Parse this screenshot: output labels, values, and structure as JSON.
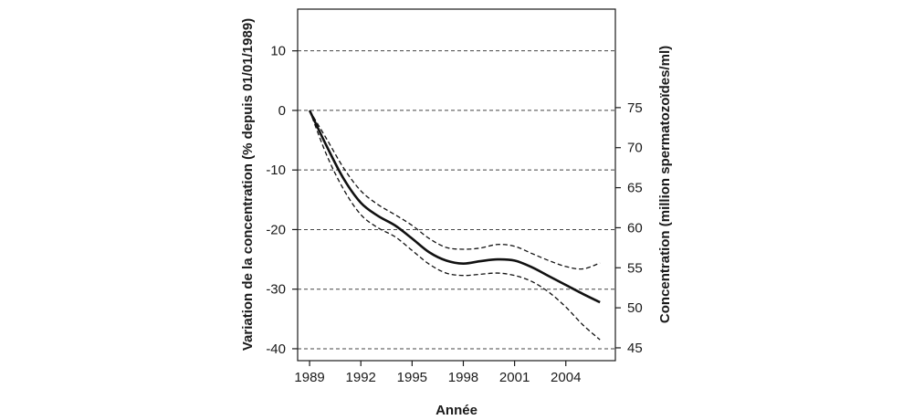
{
  "chart_data": {
    "type": "line",
    "title": "",
    "xlabel": "Année",
    "ylabel_left": "Variation de la concentration (% depuis 01/01/1989)",
    "ylabel_right": "Concentration (million spermatozoïdes/ml)",
    "xlim": [
      1988.3,
      2006.9
    ],
    "ylim_left": [
      -42,
      17
    ],
    "ylim_right": [
      43.4,
      87.3
    ],
    "x_ticks": [
      1989,
      1992,
      1995,
      1998,
      2001,
      2004
    ],
    "y_ticks_left": [
      10,
      0,
      -10,
      -20,
      -30,
      -40
    ],
    "y_ticks_right": [
      75,
      70,
      65,
      60,
      55,
      50,
      45
    ],
    "grid": "horizontal-dashed",
    "series": [
      {
        "role": "estimate",
        "style": "solid",
        "x": [
          1989,
          1990,
          1991,
          1992,
          1993,
          1994,
          1995,
          1996,
          1997,
          1998,
          1999,
          2000,
          2001,
          2002,
          2003,
          2004,
          2005,
          2006
        ],
        "y": [
          0,
          -6,
          -11.5,
          -15.5,
          -17.7,
          -19.3,
          -21.5,
          -23.8,
          -25.2,
          -25.7,
          -25.3,
          -25,
          -25.2,
          -26.3,
          -27.8,
          -29.3,
          -30.8,
          -32.2
        ]
      },
      {
        "role": "upper-ci",
        "style": "dashed",
        "x": [
          1989,
          1990,
          1991,
          1992,
          1993,
          1994,
          1995,
          1996,
          1997,
          1998,
          1999,
          2000,
          2001,
          2002,
          2003,
          2004,
          2005,
          2006
        ],
        "y": [
          0,
          -4.8,
          -9.7,
          -13.5,
          -15.8,
          -17.5,
          -19.3,
          -21.5,
          -23,
          -23.3,
          -23.1,
          -22.5,
          -22.8,
          -24,
          -25.2,
          -26.2,
          -26.6,
          -25.6
        ]
      },
      {
        "role": "lower-ci",
        "style": "dashed",
        "x": [
          1989,
          1990,
          1991,
          1992,
          1993,
          1994,
          1995,
          1996,
          1997,
          1998,
          1999,
          2000,
          2001,
          2002,
          2003,
          2004,
          2005,
          2006
        ],
        "y": [
          0,
          -7.5,
          -13.3,
          -17.5,
          -19.7,
          -21.2,
          -23.5,
          -25.8,
          -27.3,
          -27.7,
          -27.5,
          -27.3,
          -27.7,
          -28.7,
          -30.5,
          -33,
          -36,
          -38.5
        ]
      }
    ]
  }
}
